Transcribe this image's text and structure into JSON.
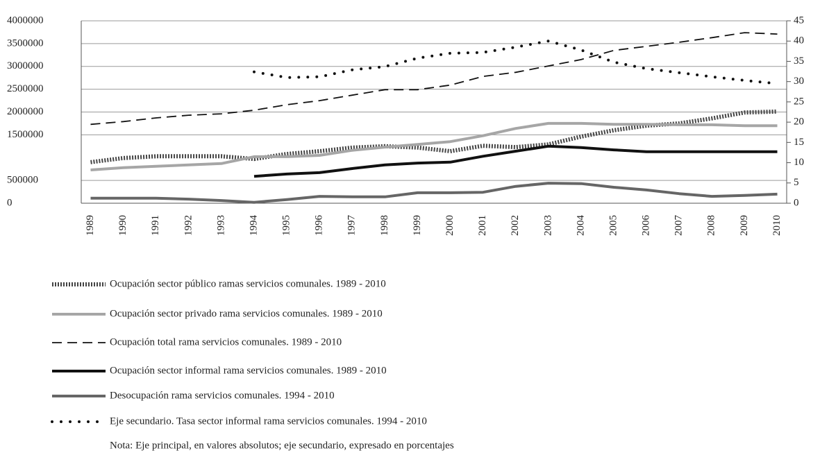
{
  "chart_data": {
    "type": "line",
    "categories": [
      "1989",
      "1990",
      "1991",
      "1992",
      "1993",
      "1994",
      "1995",
      "1996",
      "1997",
      "1998",
      "1999",
      "2000",
      "2001",
      "2002",
      "2003",
      "2004",
      "2005",
      "2006",
      "2007",
      "2008",
      "2009",
      "2010"
    ],
    "ylim": [
      0,
      4000000
    ],
    "yticks": [
      0,
      500000,
      1500000,
      2000000,
      2500000,
      3000000,
      3500000,
      4000000
    ],
    "y2lim": [
      0,
      45
    ],
    "y2ticks": [
      0,
      5,
      10,
      15,
      20,
      25,
      30,
      35,
      40,
      45
    ],
    "grid": true,
    "series": [
      {
        "name": "Ocupación sector público ramas servicios comunales. 1989 - 2010",
        "color": "#444444",
        "style": "hatched",
        "values": [
          900000,
          990000,
          1030000,
          1030000,
          1030000,
          970000,
          1080000,
          1140000,
          1220000,
          1250000,
          1220000,
          1140000,
          1260000,
          1230000,
          1290000,
          1460000,
          1600000,
          1700000,
          1750000,
          1860000,
          1990000,
          2010000
        ]
      },
      {
        "name": "Ocupación sector privado rama servicios comunales. 1989 - 2010",
        "color": "#a6a6a6",
        "style": "solid",
        "values": [
          730000,
          780000,
          810000,
          840000,
          870000,
          1020000,
          1020000,
          1050000,
          1160000,
          1230000,
          1290000,
          1350000,
          1480000,
          1640000,
          1750000,
          1750000,
          1730000,
          1730000,
          1720000,
          1720000,
          1700000,
          1700000
        ]
      },
      {
        "name": "Ocupación total rama servicios comunales. 1989 - 2010",
        "color": "#111111",
        "style": "dash",
        "values": [
          1730000,
          1790000,
          1870000,
          1930000,
          1960000,
          2040000,
          2160000,
          2250000,
          2370000,
          2490000,
          2490000,
          2590000,
          2780000,
          2870000,
          3010000,
          3150000,
          3350000,
          3440000,
          3530000,
          3630000,
          3740000,
          3710000
        ]
      },
      {
        "name": "Ocupación  sector informal rama servicios comunales. 1989 - 2010",
        "color": "#111111",
        "style": "solid",
        "values": [
          null,
          null,
          null,
          null,
          null,
          590000,
          640000,
          670000,
          760000,
          840000,
          880000,
          900000,
          1030000,
          1140000,
          1250000,
          1220000,
          1170000,
          1130000,
          1130000,
          1130000,
          1130000,
          1130000
        ]
      },
      {
        "name": "Desocupación rama servicios comunales. 1994 - 2010",
        "color": "#666666",
        "style": "solid",
        "values": [
          110000,
          110000,
          110000,
          90000,
          60000,
          20000,
          80000,
          150000,
          140000,
          140000,
          230000,
          230000,
          240000,
          370000,
          440000,
          430000,
          350000,
          290000,
          210000,
          150000,
          170000,
          200000
        ]
      },
      {
        "name": "Eje secundario. Tasa sector informal rama servicios comunales. 1994 - 2010",
        "color": "#111111",
        "style": "dotted",
        "axis": "y2",
        "values": [
          null,
          null,
          null,
          null,
          null,
          32.4,
          31,
          31.2,
          32.9,
          33.7,
          35.8,
          37,
          37.2,
          38.5,
          40,
          37.8,
          34.8,
          33.2,
          32.2,
          31.2,
          30.3,
          29.5
        ]
      }
    ],
    "note": "Nota: Eje principal, en valores absolutos; eje secundario, expresado en porcentajes"
  }
}
